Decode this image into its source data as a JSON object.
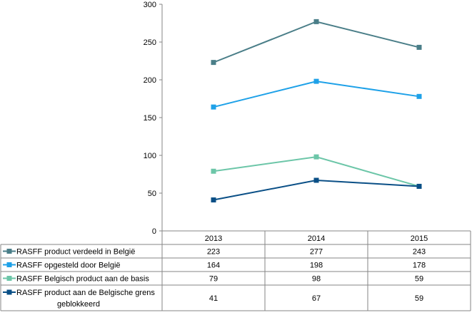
{
  "chart_data": {
    "type": "line",
    "title": "",
    "xlabel": "",
    "ylabel": "",
    "categories": [
      "2013",
      "2014",
      "2015"
    ],
    "ylim": [
      0,
      300
    ],
    "yticks": [
      "0",
      "50",
      "100",
      "150",
      "200",
      "250",
      "300"
    ],
    "grid": false,
    "legend": "data-table-left",
    "series": [
      {
        "name": "RASFF product verdeeld in België",
        "values": [
          223,
          277,
          243
        ],
        "color": "#4a7e88"
      },
      {
        "name": "RASFF opgesteld door België",
        "values": [
          164,
          198,
          178
        ],
        "color": "#1ea1e8"
      },
      {
        "name": "RASFF Belgisch product aan de basis",
        "values": [
          79,
          98,
          59
        ],
        "color": "#6cc6a8"
      },
      {
        "name_lines": [
          "RASFF product aan de Belgische grens",
          "geblokkeerd"
        ],
        "values": [
          41,
          67,
          59
        ],
        "color": "#0a4f86"
      }
    ]
  }
}
